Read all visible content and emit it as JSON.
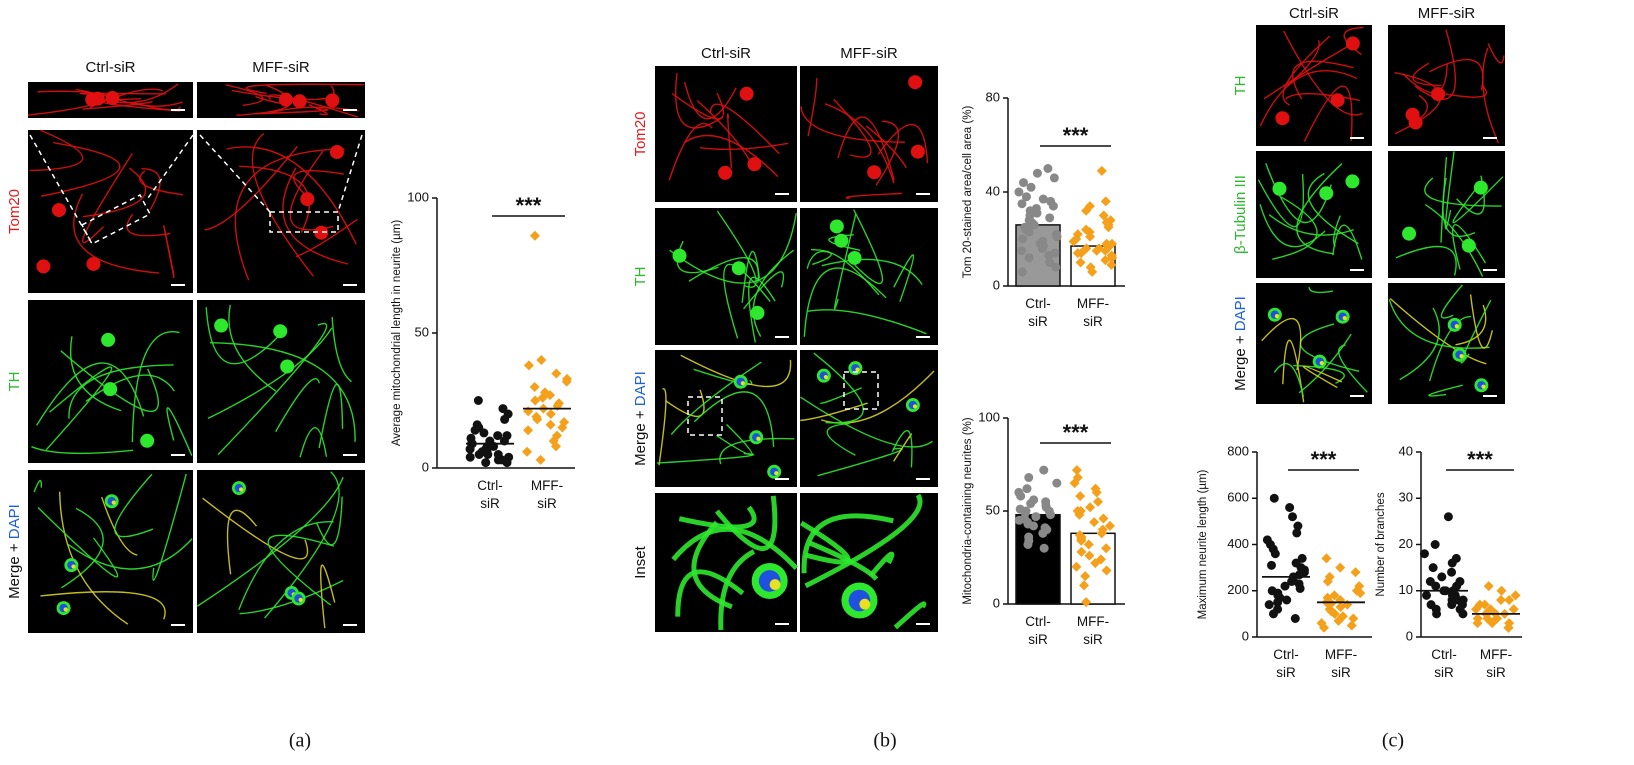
{
  "figure": {
    "panels": [
      {
        "label": "(a)",
        "columns": [
          "Ctrl-siR",
          "MFF-siR"
        ],
        "rows": [
          [
            "Tom20"
          ],
          [
            "TH"
          ],
          [
            "Merge + ",
            "DAPI"
          ]
        ]
      },
      {
        "label": "(b)",
        "columns": [
          "Ctrl-siR",
          "MFF-siR"
        ],
        "rows": [
          [
            "Tom20"
          ],
          [
            "TH"
          ],
          [
            "Merge + ",
            "DAPI"
          ],
          [
            "Inset"
          ]
        ]
      },
      {
        "label": "(c)",
        "columns": [
          "Ctrl-siR",
          "MFF-siR"
        ],
        "rows": [
          [
            "TH"
          ],
          [
            "β-Tubulin III"
          ],
          [
            "Merge + ",
            "DAPI"
          ]
        ]
      }
    ]
  },
  "chart_data": [
    {
      "type": "dot",
      "ylabel": "Average mitochondrial length in neurite (µm)",
      "categories": [
        "Ctrl-\nsiR",
        "MFF-\nsiR"
      ],
      "values": [
        9,
        22
      ],
      "colors": [
        "#111111",
        "#f5a01a"
      ],
      "annotation": "***",
      "points": [
        [
          25,
          22,
          20,
          18,
          16,
          15,
          14,
          13,
          12,
          12,
          11,
          10,
          10,
          9,
          9,
          8,
          8,
          7,
          7,
          6,
          6,
          5,
          5,
          5,
          4,
          4,
          3,
          3,
          2,
          2
        ],
        [
          86,
          40,
          38,
          35,
          33,
          32,
          30,
          28,
          27,
          26,
          25,
          24,
          23,
          22,
          21,
          20,
          19,
          18,
          17,
          16,
          15,
          14,
          12,
          10,
          8,
          6,
          3
        ]
      ],
      "ylim": [
        0,
        100
      ],
      "yticks": [
        0,
        50,
        100
      ]
    },
    {
      "type": "bar",
      "ylabel": "Tom 20-stained area/cell area (%)",
      "categories": [
        "Ctrl-\nsiR",
        "MFF-\nsiR"
      ],
      "values": [
        26,
        17
      ],
      "colors": [
        "#888888",
        "#f5a01a"
      ],
      "bar_colors": [
        "#999999",
        "#ffffff"
      ],
      "annotation": "***",
      "points": [
        [
          50,
          48,
          46,
          44,
          42,
          40,
          38,
          37,
          36,
          35,
          34,
          33,
          32,
          31,
          30,
          29,
          28,
          27,
          26,
          25,
          24,
          23,
          22,
          21,
          20,
          19,
          18,
          17,
          16,
          15,
          14,
          13,
          12,
          10,
          8,
          6
        ],
        [
          49,
          36,
          34,
          32,
          30,
          28,
          27,
          26,
          25,
          24,
          23,
          22,
          21,
          20,
          19,
          18,
          18,
          17,
          17,
          16,
          16,
          15,
          15,
          14,
          14,
          13,
          12,
          11,
          10,
          9,
          8,
          6
        ]
      ],
      "ylim": [
        0,
        80
      ],
      "yticks": [
        0,
        40,
        80
      ]
    },
    {
      "type": "bar",
      "ylabel": "Mitochondria-containing neurites (%)",
      "categories": [
        "Ctrl-\nsiR",
        "MFF-\nsiR"
      ],
      "values": [
        48,
        38
      ],
      "colors": [
        "#888888",
        "#f5a01a"
      ],
      "bar_colors": [
        "#000000",
        "#ffffff"
      ],
      "annotation": "***",
      "points": [
        [
          72,
          68,
          65,
          62,
          60,
          58,
          56,
          55,
          54,
          53,
          52,
          51,
          50,
          50,
          49,
          48,
          47,
          46,
          45,
          44,
          43,
          42,
          41,
          40,
          38,
          36,
          34,
          32,
          30
        ],
        [
          72,
          68,
          65,
          62,
          60,
          58,
          55,
          52,
          50,
          50,
          48,
          46,
          44,
          42,
          40,
          38,
          37,
          36,
          35,
          34,
          32,
          30,
          28,
          26,
          24,
          22,
          20,
          18,
          15,
          10,
          1
        ]
      ],
      "ylim": [
        0,
        100
      ],
      "yticks": [
        0,
        50,
        100
      ]
    },
    {
      "type": "dot",
      "ylabel": "Maximum neurite length (µm)",
      "categories": [
        "Ctrl-\nsiR",
        "MFF-\nsiR"
      ],
      "values": [
        260,
        150
      ],
      "colors": [
        "#111111",
        "#f5a01a"
      ],
      "annotation": "***",
      "points": [
        [
          600,
          560,
          520,
          480,
          450,
          420,
          400,
          380,
          360,
          340,
          320,
          310,
          300,
          290,
          280,
          270,
          260,
          250,
          240,
          230,
          220,
          210,
          200,
          190,
          180,
          170,
          160,
          150,
          140,
          120,
          100,
          80
        ],
        [
          340,
          300,
          280,
          260,
          240,
          220,
          200,
          190,
          180,
          170,
          160,
          150,
          145,
          140,
          130,
          120,
          110,
          100,
          90,
          80,
          70,
          60,
          50,
          40
        ]
      ],
      "ylim": [
        0,
        800
      ],
      "yticks": [
        0,
        200,
        400,
        600,
        800
      ]
    },
    {
      "type": "dot",
      "ylabel": "Number of branches",
      "categories": [
        "Ctrl-\nsiR",
        "MFF-\nsiR"
      ],
      "values": [
        10,
        5
      ],
      "colors": [
        "#111111",
        "#f5a01a"
      ],
      "annotation": "***",
      "points": [
        [
          26,
          20,
          18,
          17,
          16,
          15,
          14,
          13,
          12,
          12,
          11,
          11,
          10,
          10,
          10,
          9,
          9,
          9,
          8,
          8,
          8,
          7,
          7,
          7,
          6,
          6,
          5,
          5
        ],
        [
          11,
          10,
          9,
          8,
          8,
          7,
          7,
          6,
          6,
          6,
          5,
          5,
          5,
          5,
          4,
          4,
          4,
          4,
          3,
          3,
          3,
          2,
          2
        ]
      ],
      "ylim": [
        0,
        40
      ],
      "yticks": [
        0,
        10,
        20,
        30,
        40
      ]
    }
  ]
}
